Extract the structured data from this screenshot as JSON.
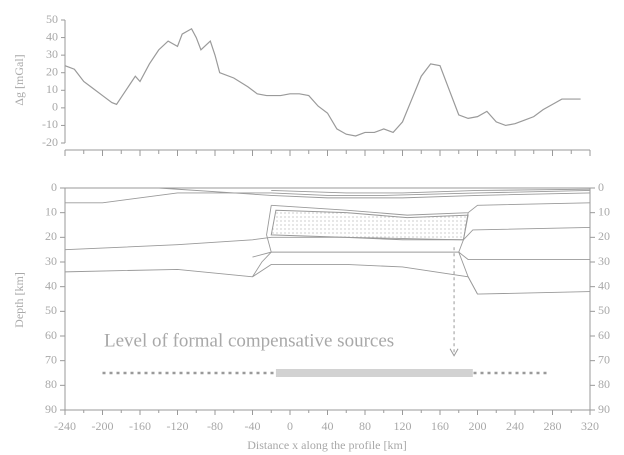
{
  "chart_data": [
    {
      "type": "line",
      "ylabel": "Δg [mGal]",
      "x": [
        -240,
        -230,
        -220,
        -210,
        -200,
        -190,
        -185,
        -180,
        -170,
        -165,
        -160,
        -150,
        -140,
        -130,
        -120,
        -115,
        -105,
        -100,
        -95,
        -85,
        -80,
        -75,
        -60,
        -45,
        -35,
        -25,
        -10,
        0,
        10,
        20,
        30,
        40,
        50,
        60,
        70,
        80,
        90,
        100,
        110,
        120,
        130,
        140,
        150,
        160,
        170,
        180,
        190,
        200,
        210,
        220,
        230,
        240,
        250,
        260,
        270,
        280,
        290,
        300,
        310
      ],
      "series": [
        {
          "color": "#9a9a9a",
          "values": [
            24,
            22,
            15,
            11,
            7,
            3,
            2,
            6,
            14,
            18,
            15,
            25,
            33,
            38,
            35,
            42,
            45,
            40,
            33,
            38,
            30,
            20,
            17,
            12,
            8,
            7,
            7,
            8,
            8,
            7,
            1,
            -3,
            -12,
            -15,
            -16,
            -14,
            -14,
            -12,
            -14,
            -8,
            5,
            18,
            25,
            24,
            10,
            -4,
            -6,
            -5,
            -2,
            -8,
            -10,
            -9,
            -7,
            -5,
            -1,
            2,
            5,
            5,
            5
          ]
        }
      ],
      "xlim": [
        -240,
        320
      ],
      "ylim": [
        -20,
        50
      ],
      "yticks": [
        -20,
        -10,
        0,
        10,
        20,
        30,
        40,
        50
      ]
    },
    {
      "type": "section",
      "xlabel": "Distance x along the profile [km]",
      "ylabel": "Depth [km]",
      "annotation": "Level of formal compensative sources",
      "xlim": [
        -240,
        320
      ],
      "ylim": [
        0,
        90
      ],
      "xticks": [
        -240,
        -200,
        -160,
        -120,
        -80,
        -40,
        0,
        40,
        80,
        120,
        160,
        200,
        240,
        280,
        320
      ],
      "yticks": [
        0,
        10,
        20,
        30,
        40,
        50,
        60,
        70,
        80,
        90
      ],
      "line_color": "#9a9a9a",
      "boundaries": [
        {
          "x": [
            -240,
            -200,
            -120,
            -20,
            40,
            100,
            200,
            320
          ],
          "values": [
            6,
            6,
            2,
            2,
            3,
            3,
            2,
            1
          ]
        },
        {
          "x": [
            -140,
            -20,
            40,
            120,
            200,
            320
          ],
          "values": [
            0,
            3,
            4,
            4,
            3,
            2
          ]
        },
        {
          "x": [
            -20,
            60,
            120,
            200,
            320
          ],
          "values": [
            1,
            2,
            2,
            1,
            0.5
          ]
        },
        {
          "x": [
            -20,
            60,
            125,
            190,
            200,
            320
          ],
          "values": [
            7,
            9,
            11,
            10,
            7,
            6
          ]
        },
        {
          "x": [
            -240,
            -120,
            -40,
            -20,
            60,
            185,
            195,
            320
          ],
          "values": [
            25,
            23,
            21,
            20,
            20,
            21,
            17,
            16
          ]
        },
        {
          "x": [
            -40,
            -20,
            60,
            180,
            190,
            320
          ],
          "values": [
            28,
            26,
            26,
            26,
            29,
            29
          ]
        },
        {
          "x": [
            -240,
            -120,
            -40,
            -20,
            60,
            120,
            190,
            200,
            320
          ],
          "values": [
            34,
            33,
            36,
            31,
            31,
            32,
            36,
            43,
            42
          ]
        },
        {
          "x": [
            -20,
            -25,
            -20,
            -30,
            -40
          ],
          "values": [
            7,
            19,
            26,
            30,
            36
          ]
        },
        {
          "x": [
            190,
            185,
            180,
            190,
            200
          ],
          "values": [
            10,
            21,
            26,
            36,
            43
          ]
        }
      ],
      "body": {
        "x": [
          -15,
          60,
          125,
          190,
          185,
          120,
          60,
          -20
        ],
        "values": [
          9,
          10,
          12,
          11,
          21,
          21,
          20,
          19
        ]
      },
      "arrow": {
        "x": 175,
        "values": [
          24,
          68
        ]
      },
      "sources": {
        "depth": 75,
        "bar": [
          -15,
          195
        ],
        "dotted": [
          -200,
          275
        ]
      }
    }
  ]
}
